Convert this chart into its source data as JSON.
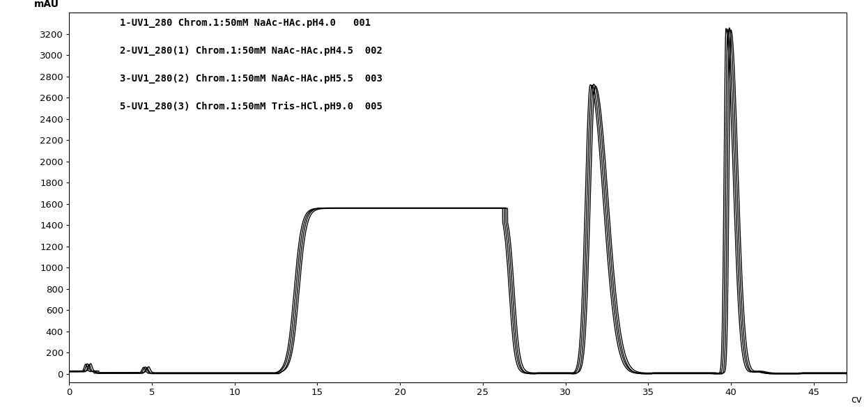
{
  "ylabel": "mAU",
  "xlabel": "cv",
  "xlim": [
    0,
    47
  ],
  "ylim": [
    -80,
    3400
  ],
  "yticks": [
    0,
    200,
    400,
    600,
    800,
    1000,
    1200,
    1400,
    1600,
    1800,
    2000,
    2200,
    2400,
    2600,
    2800,
    3000,
    3200
  ],
  "xticks": [
    0,
    5,
    10,
    15,
    20,
    25,
    30,
    35,
    40,
    45
  ],
  "legend": [
    "1-UV1_280 Chrom.1:50mM NaAc-HAc.pH4.0   001",
    "2-UV1_280(1) Chrom.1:50mM NaAc-HAc.pH4.5  002",
    "3-UV1_280(2) Chrom.1:50mM NaAc-HAc.pH5.5  003",
    "5-UV1_280(3) Chrom.1:50mM Tris-HCl.pH9.0  005"
  ],
  "line_color": "#000000",
  "background_color": "#ffffff",
  "font_size": 10,
  "legend_fontsize": 10
}
